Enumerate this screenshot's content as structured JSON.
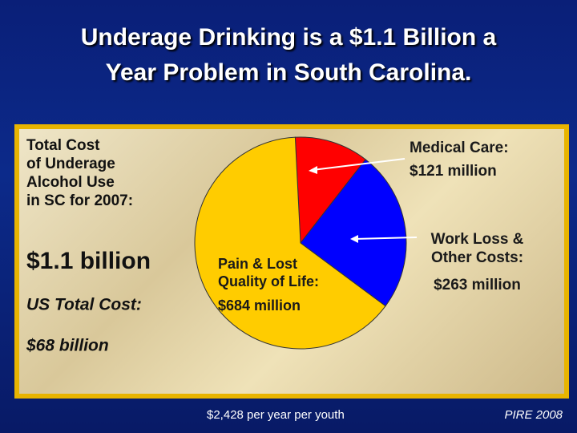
{
  "chart_data": {
    "type": "pie",
    "title": [
      "Underage Drinking is a $1.1 Billion a",
      "Year Problem in South Carolina."
    ],
    "categories": [
      "Medical Care:",
      "Work Loss & Other Costs:",
      "Pain & Lost Quality of Life:"
    ],
    "values": [
      121,
      263,
      684
    ],
    "value_labels": [
      "$121 million",
      "$263 million",
      "$684 million"
    ],
    "colors": [
      "#ff0000",
      "#0000ff",
      "#ffcc00"
    ],
    "note": [
      "Total Cost",
      "of Underage",
      "Alcohol Use",
      "in SC for 2007:"
    ],
    "total": "$1.1 billion",
    "us_label": "US Total Cost:",
    "us_total": "$68 billion",
    "footer": "$2,428 per year per youth",
    "source": "PIRE 2008"
  }
}
